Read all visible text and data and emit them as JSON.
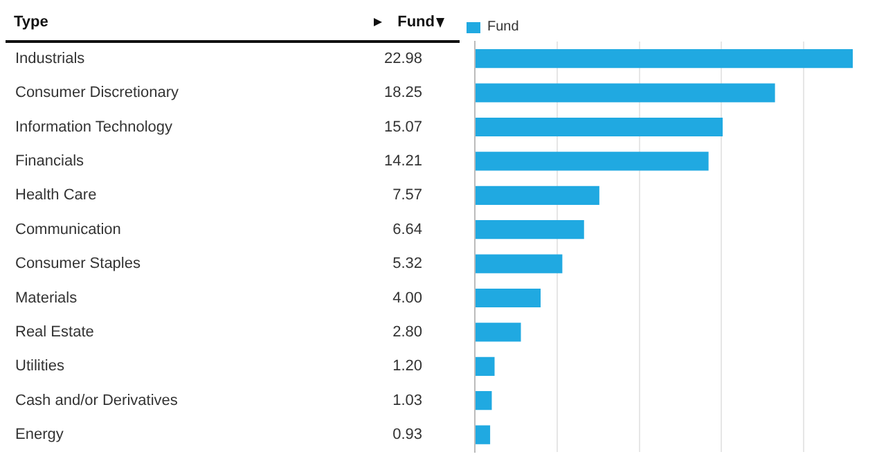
{
  "chart_data": {
    "type": "bar",
    "orientation": "horizontal",
    "ylabel": "Type",
    "xlabel": "Fund",
    "categories": [
      "Industrials",
      "Consumer Discretionary",
      "Information Technology",
      "Financials",
      "Health Care",
      "Communication",
      "Consumer Staples",
      "Materials",
      "Real Estate",
      "Utilities",
      "Cash and/or Derivatives",
      "Energy"
    ],
    "series": [
      {
        "name": "Fund",
        "color": "#20a9e1",
        "values": [
          22.98,
          18.25,
          15.07,
          14.21,
          7.57,
          6.64,
          5.32,
          4.0,
          2.8,
          1.2,
          1.03,
          0.93
        ],
        "value_labels": [
          "22.98",
          "18.25",
          "15.07",
          "14.21",
          "7.57",
          "6.64",
          "5.32",
          "4.00",
          "2.80",
          "1.20",
          "1.03",
          "0.93"
        ]
      }
    ],
    "xticks": [
      {
        "value": 0,
        "label": null
      },
      {
        "value": 5,
        "label": null
      },
      {
        "value": 10,
        "label": null
      },
      {
        "value": 15,
        "label": null
      },
      {
        "value": 20,
        "label": null
      }
    ],
    "grid": "x",
    "legend": "top left",
    "tick_labels": "y"
  }
}
